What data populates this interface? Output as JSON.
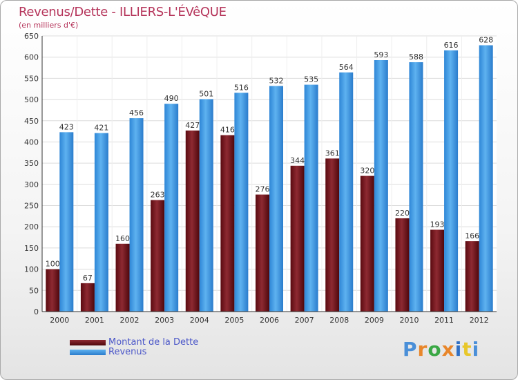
{
  "header": {
    "title": "Revenus/Dette - ILLIERS-L'ÉVêQUE",
    "subtitle": "(en milliers d'€)"
  },
  "legend": {
    "items": [
      {
        "label": "Montant de la Dette",
        "color": "#6b0d14"
      },
      {
        "label": "Revenus",
        "color": "#3d9be6"
      }
    ]
  },
  "logo": {
    "text": "Proxiti",
    "colors": [
      "#4a8fd8",
      "#e8862a",
      "#3aa845",
      "#e8862a",
      "#2f6fc4",
      "#e8c72a",
      "#4a8fd8"
    ]
  },
  "chart_data": {
    "type": "bar",
    "title": "Revenus/Dette - ILLIERS-L'ÉVêQUE",
    "subtitle": "(en milliers d'€)",
    "categories": [
      "2000",
      "2001",
      "2002",
      "2003",
      "2004",
      "2005",
      "2006",
      "2007",
      "2008",
      "2009",
      "2010",
      "2011",
      "2012"
    ],
    "series": [
      {
        "name": "Montant de la Dette",
        "color": "#6b0d14",
        "values": [
          100,
          67,
          160,
          263,
          427,
          416,
          276,
          344,
          361,
          320,
          220,
          193,
          166
        ]
      },
      {
        "name": "Revenus",
        "color": "#3d9be6",
        "values": [
          423,
          421,
          456,
          490,
          501,
          516,
          532,
          535,
          564,
          593,
          588,
          616,
          628
        ]
      }
    ],
    "ylim": [
      0,
      650
    ],
    "ytick_step": 50,
    "grid": true,
    "legend_position": "bottom-left"
  }
}
